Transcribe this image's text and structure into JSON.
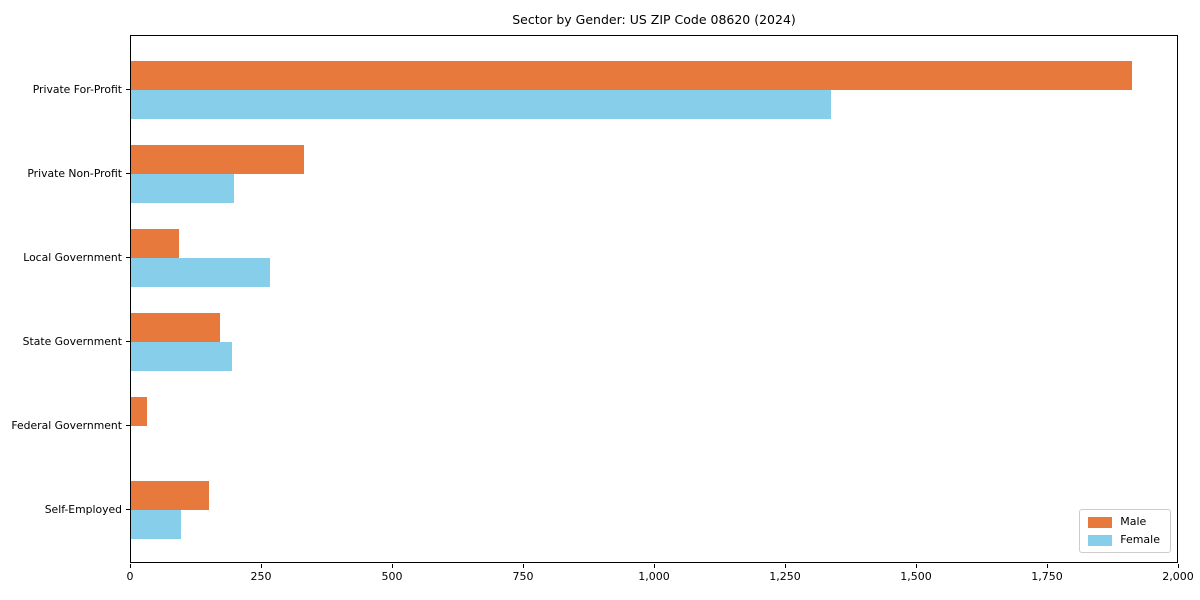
{
  "chart_data": {
    "type": "bar",
    "orientation": "horizontal",
    "title": "Sector by Gender: US ZIP Code 08620 (2024)",
    "categories": [
      "Private For-Profit",
      "Private Non-Profit",
      "Local Government",
      "State Government",
      "Federal Government",
      "Self-Employed"
    ],
    "series": [
      {
        "name": "Male",
        "color": "#e8793d",
        "values": [
          1910,
          330,
          92,
          169,
          30,
          149
        ]
      },
      {
        "name": "Female",
        "color": "#87ceeb",
        "values": [
          1335,
          196,
          265,
          193,
          0,
          95
        ]
      }
    ],
    "xlabel": "",
    "ylabel": "",
    "xlim": [
      0,
      2000
    ],
    "x_ticks": [
      {
        "value": 0,
        "label": "0"
      },
      {
        "value": 250,
        "label": "250"
      },
      {
        "value": 500,
        "label": "500"
      },
      {
        "value": 750,
        "label": "750"
      },
      {
        "value": 1000,
        "label": "1,000"
      },
      {
        "value": 1250,
        "label": "1,250"
      },
      {
        "value": 1500,
        "label": "1,500"
      },
      {
        "value": 1750,
        "label": "1,750"
      },
      {
        "value": 2000,
        "label": "2,000"
      }
    ],
    "grid": false,
    "legend": {
      "position": "lower-right",
      "entries": [
        "Male",
        "Female"
      ]
    }
  }
}
